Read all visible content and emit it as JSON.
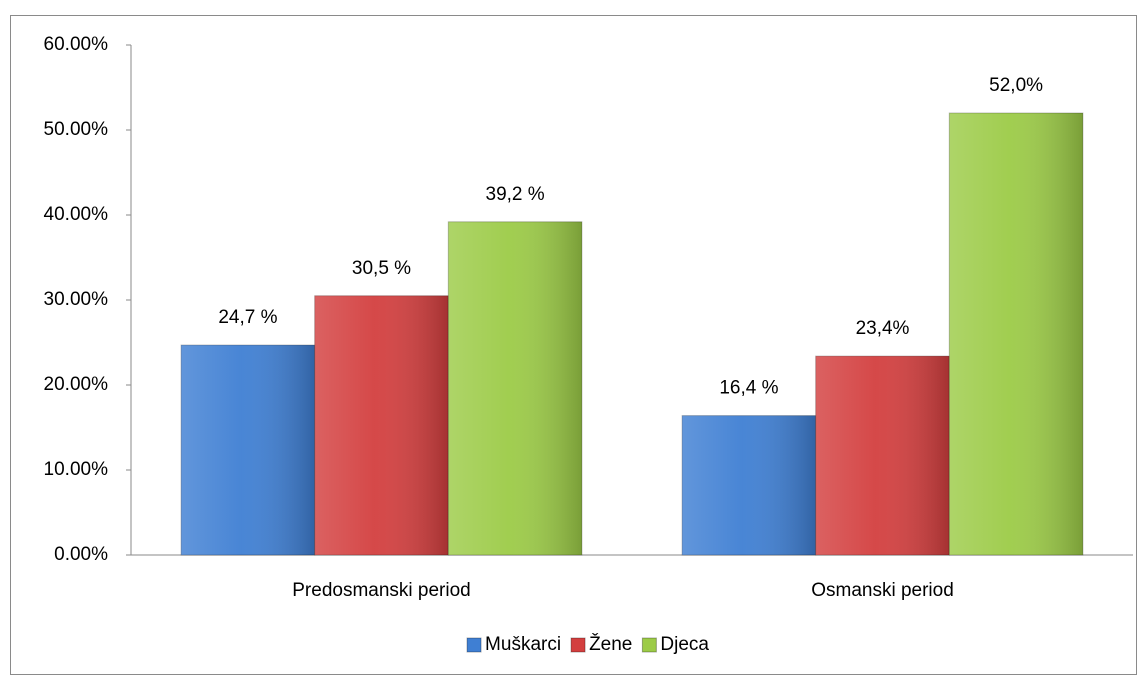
{
  "chart_data": {
    "type": "bar",
    "categories": [
      "Predosmanski period",
      "Osmanski period"
    ],
    "series": [
      {
        "name": "Muškarci",
        "color": "#3f7fd3",
        "values": [
          24.7,
          16.4
        ],
        "value_labels": [
          "24,7 %",
          "16,4 %"
        ]
      },
      {
        "name": "Žene",
        "color": "#d33f3f",
        "values": [
          30.5,
          23.4
        ],
        "value_labels": [
          "30,5 %",
          "23,4%"
        ]
      },
      {
        "name": "Djeca",
        "color": "#9ccb47",
        "values": [
          39.2,
          52.0
        ],
        "value_labels": [
          "39,2 %",
          "52,0%"
        ]
      }
    ],
    "ylim": [
      0,
      60
    ],
    "yticks": [
      {
        "value": 0,
        "label": "0.00%"
      },
      {
        "value": 10,
        "label": "10.00%"
      },
      {
        "value": 20,
        "label": "20.00%"
      },
      {
        "value": 30,
        "label": "30.00%"
      },
      {
        "value": 40,
        "label": "40.00%"
      },
      {
        "value": 50,
        "label": "50.00%"
      },
      {
        "value": 60,
        "label": "60.00%"
      }
    ],
    "grid": false,
    "legend": "bottom"
  }
}
